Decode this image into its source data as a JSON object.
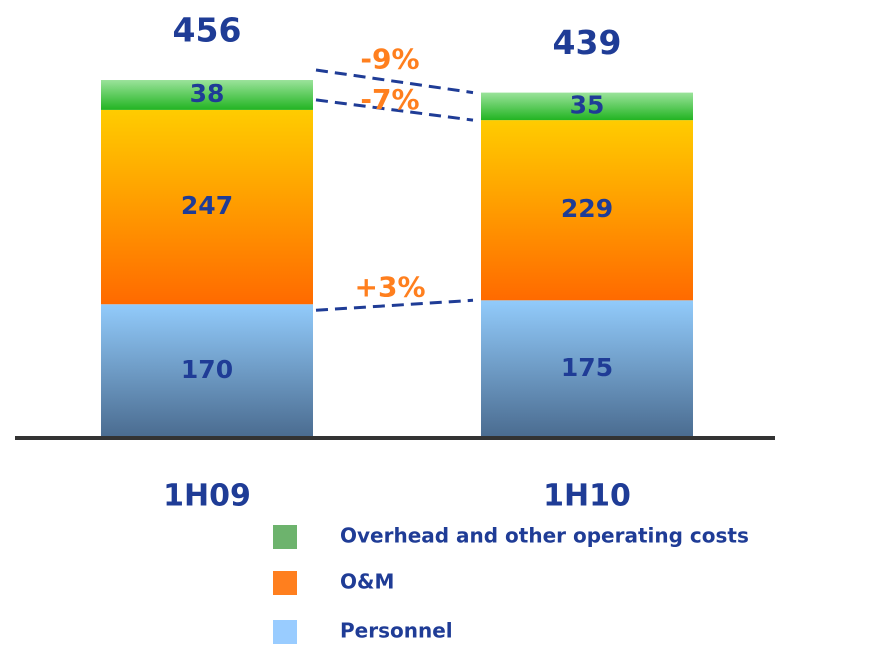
{
  "chart_data": {
    "type": "stacked_bar",
    "categories": [
      "1H09",
      "1H10"
    ],
    "series": [
      {
        "name": "Personnel",
        "color": "#99ccff",
        "values": [
          170,
          175
        ]
      },
      {
        "name": "O&M",
        "color": "#ff7f1e",
        "values": [
          247,
          229
        ]
      },
      {
        "name": "Overhead and other operating costs",
        "color": "#6db36d",
        "values": [
          38,
          35
        ]
      }
    ],
    "totals": [
      456,
      439
    ],
    "changes": [
      "+3%",
      "-7%",
      "-9%"
    ]
  }
}
